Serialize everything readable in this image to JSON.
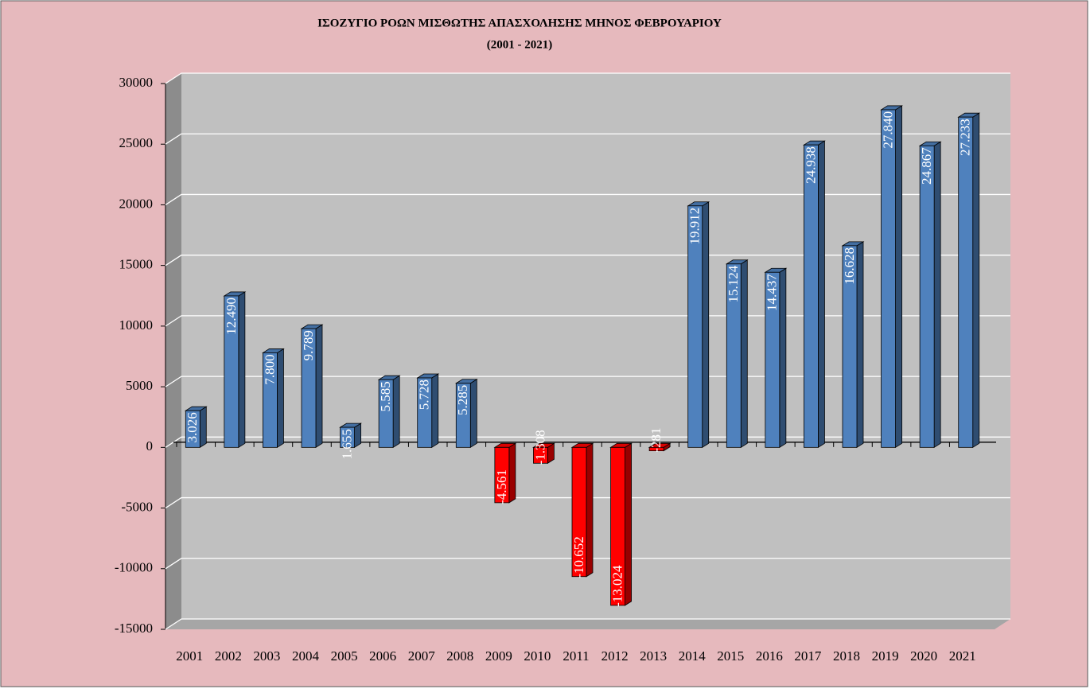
{
  "chart_data": {
    "type": "bar",
    "title": "ΙΣΟΖΥΓΙΟ ΡΟΩΝ ΜΙΣΘΩΤΗΣ ΑΠΑΣΧΟΛΗΣΗΣ ΜΗΝΟΣ  ΦΕΒΡΟΥΑΡΙΟΥ",
    "subtitle": "(2001 - 2021)",
    "categories": [
      "2001",
      "2002",
      "2003",
      "2004",
      "2005",
      "2006",
      "2007",
      "2008",
      "2009",
      "2010",
      "2011",
      "2012",
      "2013",
      "2014",
      "2015",
      "2016",
      "2017",
      "2018",
      "2019",
      "2020",
      "2021"
    ],
    "values": [
      3026,
      12490,
      7800,
      9789,
      1655,
      5585,
      5728,
      5285,
      -4561,
      -1308,
      -10652,
      -13024,
      -281,
      19912,
      15124,
      14437,
      24938,
      16628,
      27840,
      24867,
      27233
    ],
    "value_labels": [
      "3.026",
      "12.490",
      "7.800",
      "9.789",
      "1.655",
      "5.585",
      "5.728",
      "5.285",
      "-4.561",
      "-1.308",
      "-10.652",
      "-13.024",
      "-281",
      "19.912",
      "15.124",
      "14.437",
      "24.938",
      "16.628",
      "27.840",
      "24.867",
      "27.233"
    ],
    "color": "#4f81bd",
    "negative_color": "#ff0000",
    "ylim": [
      -15000,
      30000
    ],
    "yticks": [
      -15000,
      -10000,
      -5000,
      0,
      5000,
      10000,
      15000,
      20000,
      25000,
      30000
    ],
    "grid": true
  }
}
